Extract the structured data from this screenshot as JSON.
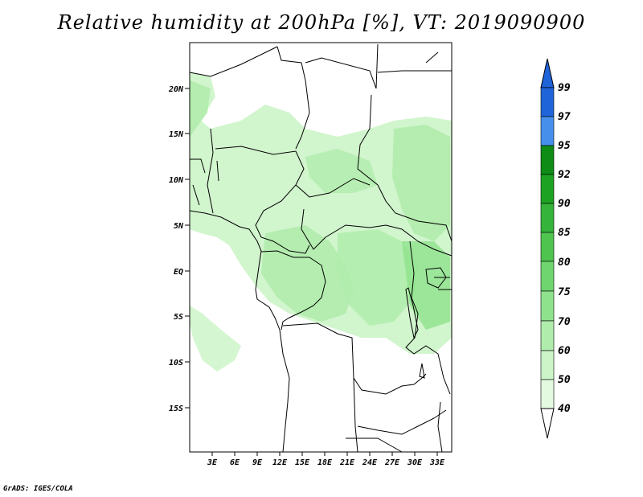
{
  "title": "Relative humidity at 200hPa [%], VT: 2019090900",
  "credit": "GrADS: IGES/COLA",
  "map": {
    "lon_range": [
      0,
      35
    ],
    "lat_range": [
      -20,
      25
    ],
    "lat_ticks": [
      "20N",
      "15N",
      "10N",
      "5N",
      "EQ",
      "5S",
      "10S",
      "15S"
    ],
    "lon_ticks": [
      "3E",
      "6E",
      "9E",
      "12E",
      "15E",
      "18E",
      "21E",
      "24E",
      "27E",
      "30E",
      "33E"
    ]
  },
  "colorbar": {
    "labels": [
      "99",
      "97",
      "95",
      "92",
      "90",
      "85",
      "80",
      "75",
      "70",
      "60",
      "50",
      "40"
    ],
    "colors": [
      "#1f64d8",
      "#4690ec",
      "#0e8c15",
      "#1ea222",
      "#34b43a",
      "#4fc44f",
      "#6fd56f",
      "#8fe28c",
      "#b0ecac",
      "#ccf4c8",
      "#e3fae0",
      "#ffffff"
    ],
    "top_arrow_color": "#1f64d8",
    "bottom_arrow_color": "#ffffff"
  },
  "fill_colors": {
    "level_60": "#ccf4c8",
    "level_70": "#b0ecac",
    "level_75": "#8fe28c"
  }
}
